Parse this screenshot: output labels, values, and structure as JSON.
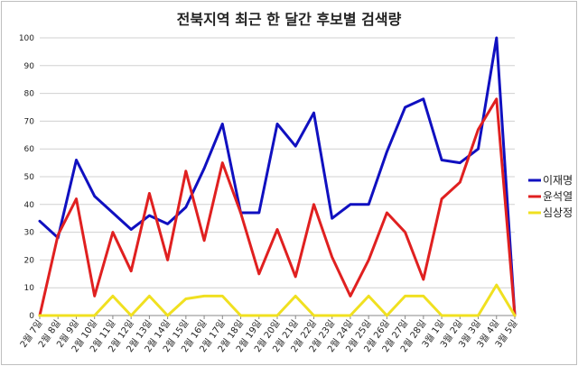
{
  "chart_data": {
    "type": "line",
    "title": "전북지역 최근 한 달간 후보별 검색량",
    "xlabel": "",
    "ylabel": "",
    "ylim": [
      0,
      100
    ],
    "yticks": [
      0,
      10,
      20,
      30,
      40,
      50,
      60,
      70,
      80,
      90,
      100
    ],
    "grid": true,
    "legend_position": "right",
    "categories": [
      "2월 7일",
      "2월 8일",
      "2월 9일",
      "2월 10일",
      "2월 11일",
      "2월 12일",
      "2월 13일",
      "2월 14일",
      "2월 15일",
      "2월 16일",
      "2월 17일",
      "2월 18일",
      "2월 19일",
      "2월 20일",
      "2월 21일",
      "2월 22일",
      "2월 23일",
      "2월 24일",
      "2월 25일",
      "2월 26일",
      "2월 27일",
      "2월 28일",
      "3월 1일",
      "3월 2일",
      "3월 3일",
      "3월 4일",
      "3월 5일"
    ],
    "series": [
      {
        "name": "이재명",
        "color": "#1010c0",
        "values": [
          34,
          28,
          56,
          43,
          37,
          31,
          36,
          33,
          39,
          53,
          69,
          37,
          37,
          69,
          61,
          73,
          35,
          40,
          40,
          59,
          75,
          78,
          56,
          55,
          60,
          100,
          0
        ]
      },
      {
        "name": "윤석열",
        "color": "#e02020",
        "values": [
          0,
          29,
          42,
          7,
          30,
          16,
          44,
          20,
          52,
          27,
          55,
          37,
          15,
          31,
          14,
          40,
          21,
          7,
          20,
          37,
          30,
          13,
          42,
          48,
          67,
          78,
          0
        ]
      },
      {
        "name": "심상정",
        "color": "#f0e020",
        "values": [
          0,
          0,
          0,
          0,
          7,
          0,
          7,
          0,
          6,
          7,
          7,
          0,
          0,
          0,
          7,
          0,
          0,
          0,
          7,
          0,
          7,
          7,
          0,
          0,
          0,
          11,
          0
        ]
      }
    ]
  }
}
